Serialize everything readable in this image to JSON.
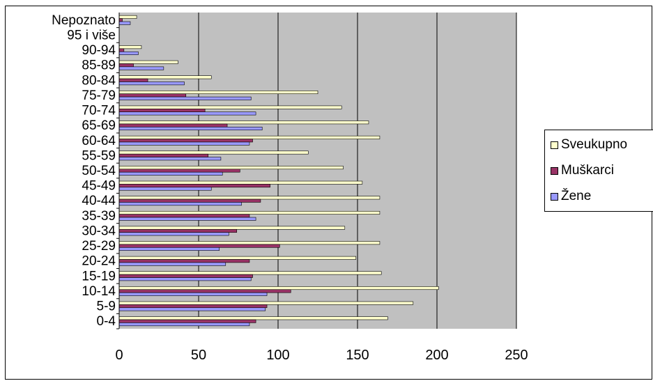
{
  "chart_data": {
    "type": "bar",
    "orientation": "horizontal",
    "categories": [
      "0-4",
      "5-9",
      "10-14",
      "15-19",
      "20-24",
      "25-29",
      "30-34",
      "35-39",
      "40-44",
      "45-49",
      "50-54",
      "55-59",
      "60-64",
      "65-69",
      "70-74",
      "75-79",
      "80-84",
      "85-89",
      "90-94",
      "95 i više",
      "Nepoznato"
    ],
    "series": [
      {
        "name": "Sveukupno",
        "color": "#ffffcc",
        "values": [
          169,
          185,
          201,
          165,
          149,
          164,
          142,
          164,
          164,
          153,
          141,
          119,
          164,
          157,
          140,
          125,
          58,
          37,
          14,
          0,
          11
        ]
      },
      {
        "name": "Muškarci",
        "color": "#993366",
        "values": [
          86,
          93,
          108,
          84,
          82,
          101,
          74,
          82,
          89,
          95,
          76,
          56,
          84,
          68,
          54,
          42,
          18,
          9,
          3,
          0,
          2
        ]
      },
      {
        "name": "Žene",
        "color": "#9999ff",
        "values": [
          82,
          92,
          93,
          83,
          67,
          63,
          69,
          86,
          77,
          58,
          65,
          64,
          82,
          90,
          86,
          83,
          41,
          28,
          12,
          0,
          7
        ]
      }
    ],
    "xlim": [
      0,
      250
    ],
    "x_ticks": [
      0,
      50,
      100,
      150,
      200,
      250
    ],
    "x_tick_labels": [
      "0",
      "50",
      "100",
      "150",
      "200",
      "250"
    ],
    "grid": true,
    "plot_background": "#c0c0c0",
    "legend_position": "right"
  }
}
